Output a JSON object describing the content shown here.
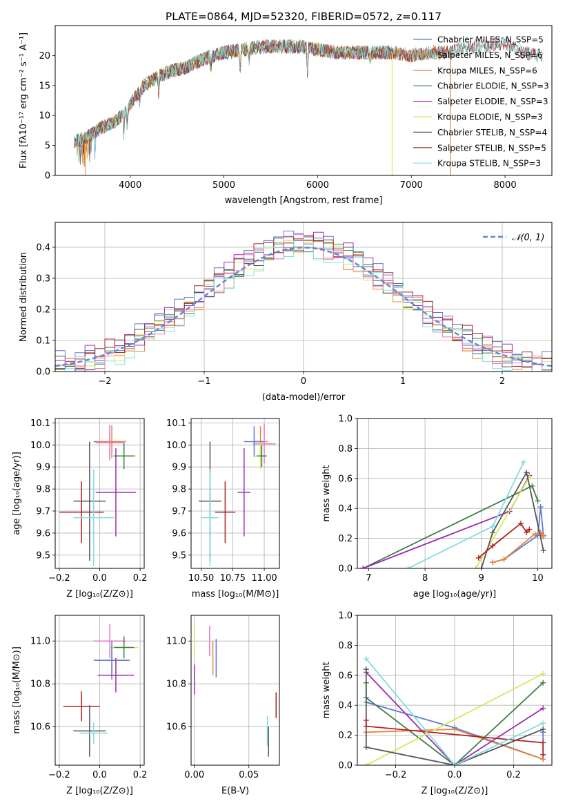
{
  "chart_data": [
    {
      "id": "spectrum",
      "type": "line",
      "title": "PLATE=0864, MJD=52320, FIBERID=0572, z=0.117",
      "xlabel": "wavelength [Angstrom, rest frame]",
      "ylabel": "Flux [fλ10⁻¹⁷ erg cm⁻² s⁻¹ A⁻¹]",
      "xlim": [
        3200,
        8500
      ],
      "ylim": [
        0,
        25
      ],
      "xticks": [
        4000,
        5000,
        6000,
        7000,
        8000
      ],
      "yticks": [
        0,
        5,
        10,
        15,
        20
      ],
      "grid": false,
      "legend_position": "right",
      "continuum_knots": {
        "x": [
          3400,
          3550,
          3700,
          3850,
          3950,
          4050,
          4150,
          4300,
          4450,
          4600,
          4800,
          5000,
          5200,
          5400,
          5600,
          5800,
          6000,
          6200,
          6400,
          6600,
          6800,
          7000,
          7200,
          7350,
          7500,
          7700,
          8000,
          8200,
          8400
        ],
        "y": [
          5.5,
          6.5,
          8,
          9,
          10.5,
          13,
          15,
          16.5,
          17.5,
          18,
          19.5,
          20.5,
          21,
          21.5,
          21.5,
          21.5,
          21,
          20.5,
          20.5,
          20.5,
          20.5,
          20,
          20.5,
          20.5,
          21,
          21.5,
          22,
          20.5,
          20
        ]
      },
      "series": [
        {
          "name": "Chabrier MILES, N_SSP=5",
          "color": "#5b79d4",
          "x_range": [
            3400,
            7450
          ]
        },
        {
          "name": "Salpeter MILES, N_SSP=6",
          "color": "#e8843a",
          "x_range": [
            3400,
            7450
          ]
        },
        {
          "name": "Kroupa MILES, N_SSP=6",
          "color": "#b8860b",
          "x_range": [
            3400,
            7450
          ]
        },
        {
          "name": "Chabrier ELODIE, N_SSP=3",
          "color": "#3a7d44",
          "x_range": [
            3400,
            6800
          ]
        },
        {
          "name": "Salpeter ELODIE, N_SSP=3",
          "color": "#9a2ab0",
          "x_range": [
            3400,
            6800
          ]
        },
        {
          "name": "Kroupa ELODIE, N_SSP=3",
          "color": "#d6e85a",
          "x_range": [
            3400,
            6800
          ]
        },
        {
          "name": "Chabrier STELIB, N_SSP=4",
          "color": "#555555",
          "x_range": [
            3400,
            8400
          ]
        },
        {
          "name": "Salpeter STELIB, N_SSP=5",
          "color": "#b22222",
          "x_range": [
            3400,
            8400
          ]
        },
        {
          "name": "Kroupa STELIB, N_SSP=3",
          "color": "#7fdde0",
          "x_range": [
            3400,
            8400
          ]
        }
      ]
    },
    {
      "id": "residuals",
      "type": "area",
      "xlabel": "(data-model)/error",
      "ylabel": "Normed distribution",
      "xlim": [
        -2.5,
        2.5
      ],
      "ylim": [
        0,
        0.48
      ],
      "xticks": [
        -2,
        -1,
        0,
        1,
        2
      ],
      "yticks": [
        0,
        0.1,
        0.2,
        0.3,
        0.4
      ],
      "grid": true,
      "legend_position": "top-right",
      "legend_label": "𝒩(0, 1)",
      "bin_width": 0.1,
      "histogram_colors": [
        "#5b79d4",
        "#e8843a",
        "#3a7d44",
        "#9a2ab0",
        "#d6e85a",
        "#555555",
        "#b22222",
        "#7fdde0",
        "#e377c2"
      ]
    },
    {
      "id": "age_vs_Z",
      "type": "scatter",
      "xlabel": "Z [log₁₀(Z/Z⊙)]",
      "ylabel": "age  [log₁₀(age/yr)]",
      "xlim": [
        -0.22,
        0.22
      ],
      "ylim": [
        9.44,
        10.12
      ],
      "xticks": [
        "-0.2",
        "0.0",
        "0.2"
      ],
      "yticks": [
        "9.5",
        "9.6",
        "9.7",
        "9.8",
        "9.9",
        "10.0",
        "10.1"
      ],
      "grid": true,
      "points": [
        {
          "x": 0.05,
          "y": 10.015,
          "xerr": 0.08,
          "yerr": 0.07,
          "color": "#5b79d4"
        },
        {
          "x": 0.06,
          "y": 10.015,
          "xerr": 0.07,
          "yerr": 0.075,
          "color": "#e8843a"
        },
        {
          "x": 0.05,
          "y": 10.01,
          "xerr": 0.07,
          "yerr": 0.08,
          "color": "#e377c2"
        },
        {
          "x": 0.12,
          "y": 9.95,
          "xerr": 0.06,
          "yerr": 0.06,
          "color": "#d6e85a"
        },
        {
          "x": 0.12,
          "y": 9.95,
          "xerr": 0.05,
          "yerr": 0.06,
          "color": "#3a7d44"
        },
        {
          "x": 0.08,
          "y": 9.785,
          "xerr": 0.1,
          "yerr": 0.2,
          "color": "#9a2ab0"
        },
        {
          "x": -0.05,
          "y": 9.745,
          "xerr": 0.08,
          "yerr": 0.27,
          "color": "#555555"
        },
        {
          "x": -0.09,
          "y": 9.695,
          "xerr": 0.11,
          "yerr": 0.14,
          "color": "#b22222"
        },
        {
          "x": -0.03,
          "y": 9.67,
          "xerr": 0.1,
          "yerr": 0.22,
          "color": "#7fdde0"
        }
      ]
    },
    {
      "id": "age_vs_mass",
      "type": "scatter",
      "xlabel": "mass [log₁₀(M/M⊙)]",
      "ylabel": "",
      "xlim": [
        10.42,
        11.12
      ],
      "ylim": [
        9.44,
        10.12
      ],
      "xticks": [
        "10.50",
        "10.75",
        "11.00"
      ],
      "yticks": [
        "9.5",
        "9.6",
        "9.7",
        "9.8",
        "9.9",
        "10.0",
        "10.1"
      ],
      "grid": true,
      "points": [
        {
          "x": 10.97,
          "y": 10.015,
          "xerr": 0.06,
          "yerr": 0.07,
          "color": "#e8843a"
        },
        {
          "x": 10.92,
          "y": 10.015,
          "xerr": 0.08,
          "yerr": 0.07,
          "color": "#5b79d4"
        },
        {
          "x": 11.0,
          "y": 10.005,
          "xerr": 0.09,
          "yerr": 0.09,
          "color": "#e377c2"
        },
        {
          "x": 10.97,
          "y": 9.95,
          "xerr": 0.05,
          "yerr": 0.06,
          "color": "#d6e85a"
        },
        {
          "x": 10.98,
          "y": 9.95,
          "xerr": 0.04,
          "yerr": 0.05,
          "color": "#3a7d44"
        },
        {
          "x": 10.84,
          "y": 9.785,
          "xerr": 0.05,
          "yerr": 0.2,
          "color": "#9a2ab0"
        },
        {
          "x": 10.57,
          "y": 9.745,
          "xerr": 0.09,
          "yerr": 0.27,
          "color": "#555555"
        },
        {
          "x": 10.69,
          "y": 9.695,
          "xerr": 0.08,
          "yerr": 0.14,
          "color": "#b22222"
        },
        {
          "x": 10.57,
          "y": 9.67,
          "xerr": 0.07,
          "yerr": 0.22,
          "color": "#7fdde0"
        }
      ]
    },
    {
      "id": "weight_vs_age",
      "type": "line",
      "xlabel": "age  [log₁₀(age/yr)]",
      "ylabel": "mass weight",
      "xlim": [
        6.8,
        10.25
      ],
      "ylim": [
        0,
        1
      ],
      "xticks": [
        "7",
        "8",
        "9",
        "10"
      ],
      "yticks": [
        "0.0",
        "0.2",
        "0.4",
        "0.6",
        "0.8",
        "1.0"
      ],
      "grid": true,
      "series": [
        {
          "color": "#5b79d4",
          "x": [
            9.2,
            9.4,
            10.0,
            10.05,
            10.1
          ],
          "y": [
            0.04,
            0.06,
            0.22,
            0.41,
            0.22
          ]
        },
        {
          "color": "#e8843a",
          "x": [
            9.2,
            9.4,
            9.95,
            10.05,
            10.1,
            10.08
          ],
          "y": [
            0.04,
            0.06,
            0.23,
            0.24,
            0.21,
            0.22
          ]
        },
        {
          "color": "#3a7d44",
          "x": [
            6.9,
            9.9,
            10.0
          ],
          "y": [
            0.0,
            0.55,
            0.45
          ]
        },
        {
          "color": "#9a2ab0",
          "x": [
            6.9,
            9.5,
            9.85
          ],
          "y": [
            0.0,
            0.38,
            0.62
          ]
        },
        {
          "color": "#d6e85a",
          "x": [
            8.9,
            9.85
          ],
          "y": [
            0.0,
            0.61
          ]
        },
        {
          "color": "#555555",
          "x": [
            9.0,
            9.2,
            9.8,
            10.1
          ],
          "y": [
            0.0,
            0.24,
            0.64,
            0.12
          ]
        },
        {
          "color": "#b22222",
          "x": [
            8.95,
            9.2,
            9.7,
            9.8,
            9.85
          ],
          "y": [
            0.07,
            0.15,
            0.3,
            0.24,
            0.26
          ]
        },
        {
          "color": "#7fdde0",
          "x": [
            7.7,
            9.2,
            9.75
          ],
          "y": [
            0.0,
            0.28,
            0.71
          ]
        }
      ]
    },
    {
      "id": "mass_vs_Z",
      "type": "scatter",
      "xlabel": "Z [log₁₀(Z/Z⊙)]",
      "ylabel": "mass [log₁₀(M/M⊙)]",
      "xlim": [
        -0.22,
        0.22
      ],
      "ylim": [
        10.42,
        11.12
      ],
      "xticks": [
        "-0.2",
        "0.0",
        "0.2"
      ],
      "yticks": [
        "10.6",
        "10.8",
        "11.0"
      ],
      "grid": true,
      "points": [
        {
          "x": 0.05,
          "y": 11.0,
          "xerr": 0.08,
          "yerr": 0.08,
          "color": "#e377c2"
        },
        {
          "x": 0.12,
          "y": 10.97,
          "xerr": 0.07,
          "yerr": 0.06,
          "color": "#d6e85a"
        },
        {
          "x": 0.12,
          "y": 10.97,
          "xerr": 0.05,
          "yerr": 0.05,
          "color": "#3a7d44"
        },
        {
          "x": 0.06,
          "y": 10.91,
          "xerr": 0.08,
          "yerr": 0.07,
          "color": "#e8843a"
        },
        {
          "x": 0.06,
          "y": 10.91,
          "xerr": 0.09,
          "yerr": 0.09,
          "color": "#5b79d4"
        },
        {
          "x": 0.08,
          "y": 10.84,
          "xerr": 0.09,
          "yerr": 0.08,
          "color": "#9a2ab0"
        },
        {
          "x": -0.09,
          "y": 10.695,
          "xerr": 0.09,
          "yerr": 0.07,
          "color": "#b22222"
        },
        {
          "x": -0.05,
          "y": 10.58,
          "xerr": 0.08,
          "yerr": 0.12,
          "color": "#555555"
        },
        {
          "x": -0.03,
          "y": 10.57,
          "xerr": 0.07,
          "yerr": 0.05,
          "color": "#7fdde0"
        }
      ]
    },
    {
      "id": "mass_vs_ebv",
      "type": "scatter",
      "xlabel": "E(B-V)",
      "ylabel": "",
      "xlim": [
        -0.003,
        0.078
      ],
      "ylim": [
        10.42,
        11.12
      ],
      "xticks": [
        "0.00",
        "0.05"
      ],
      "yticks": [
        "10.6",
        "10.8",
        "11.0"
      ],
      "grid": true,
      "points": [
        {
          "x": 0.0,
          "y": 10.995,
          "xerr": 0,
          "yerr": 0.07,
          "color": "#d6e85a"
        },
        {
          "x": 0.0,
          "y": 10.82,
          "xerr": 0,
          "yerr": 0.07,
          "color": "#9a2ab0"
        },
        {
          "x": 0.014,
          "y": 11.0,
          "xerr": 0,
          "yerr": 0.07,
          "color": "#e377c2"
        },
        {
          "x": 0.017,
          "y": 10.92,
          "xerr": 0,
          "yerr": 0.08,
          "color": "#e8843a"
        },
        {
          "x": 0.02,
          "y": 10.92,
          "xerr": 0,
          "yerr": 0.09,
          "color": "#5b79d4"
        },
        {
          "x": 0.067,
          "y": 10.58,
          "xerr": 0,
          "yerr": 0.07,
          "color": "#7fdde0"
        },
        {
          "x": 0.068,
          "y": 10.53,
          "xerr": 0,
          "yerr": 0.07,
          "color": "#555555"
        },
        {
          "x": 0.075,
          "y": 10.7,
          "xerr": 0,
          "yerr": 0.06,
          "color": "#b22222"
        }
      ]
    },
    {
      "id": "weight_vs_Z",
      "type": "line",
      "xlabel": "Z [log₁₀(Z/Z⊙)]",
      "ylabel": "mass weight",
      "xlim": [
        -0.33,
        0.33
      ],
      "ylim": [
        0,
        1
      ],
      "xticks": [
        "-0.2",
        "0.0",
        "0.2"
      ],
      "yticks": [
        "0.0",
        "0.2",
        "0.4",
        "0.6",
        "0.8",
        "1.0"
      ],
      "grid": true,
      "series": [
        {
          "color": "#5b79d4",
          "x": [
            -0.3,
            0.0,
            0.3,
            0.3
          ],
          "y": [
            0.42,
            0.25,
            0.04,
            0.22
          ]
        },
        {
          "color": "#e8843a",
          "x": [
            -0.3,
            0.0,
            0.3
          ],
          "y": [
            0.22,
            0.24,
            0.04
          ]
        },
        {
          "color": "#3a7d44",
          "x": [
            -0.3,
            -0.3,
            0.0,
            0.3
          ],
          "y": [
            0.55,
            0.45,
            0.0,
            0.55
          ]
        },
        {
          "color": "#9a2ab0",
          "x": [
            -0.3,
            0.0,
            0.3
          ],
          "y": [
            0.62,
            0.0,
            0.38
          ]
        },
        {
          "color": "#d6e85a",
          "x": [
            -0.3,
            0.3
          ],
          "y": [
            0.0,
            0.61
          ]
        },
        {
          "color": "#555555",
          "x": [
            -0.3,
            -0.3,
            0.0,
            0.3
          ],
          "y": [
            0.64,
            0.12,
            0.0,
            0.24
          ]
        },
        {
          "color": "#b22222",
          "x": [
            -0.3,
            -0.3,
            0.3,
            0.3
          ],
          "y": [
            0.3,
            0.26,
            0.15,
            0.07
          ]
        },
        {
          "color": "#7fdde0",
          "x": [
            -0.3,
            0.0,
            0.3
          ],
          "y": [
            0.71,
            0.0,
            0.28
          ]
        }
      ]
    }
  ]
}
